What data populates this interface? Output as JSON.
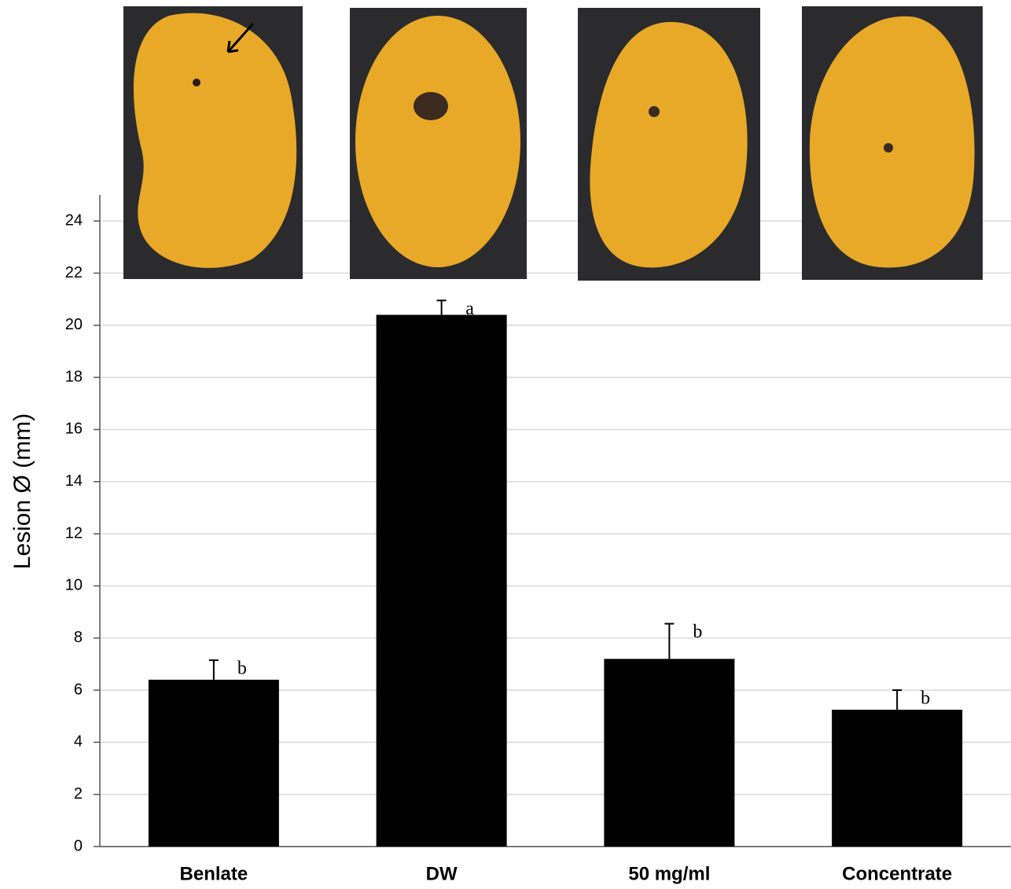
{
  "chart_data": {
    "type": "bar",
    "y_label": "Lesion Ø (mm)",
    "categories": [
      "Benlate",
      "DW",
      "50 mg/ml",
      "Concentrate"
    ],
    "values": [
      6.4,
      20.4,
      7.2,
      5.25
    ],
    "errors": [
      0.75,
      0.55,
      1.35,
      0.75
    ],
    "significance": [
      "b",
      "a",
      "b",
      "b"
    ],
    "color": "#000000",
    "ylim": [
      0,
      25
    ],
    "yticks": [
      0,
      2,
      4,
      6,
      8,
      10,
      12,
      14,
      16,
      18,
      20,
      22,
      24
    ],
    "grid": true
  }
}
